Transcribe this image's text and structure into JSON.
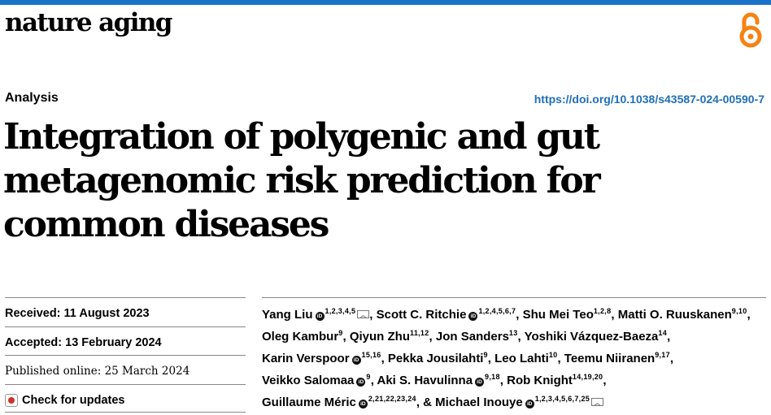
{
  "journal": {
    "name": "nature aging"
  },
  "article": {
    "type": "Analysis",
    "doi": "https://doi.org/10.1038/s43587-024-00590-7",
    "title": "Integration of polygenic and gut metagenomic risk prediction for common diseases"
  },
  "dates": {
    "received": "Received: 11 August 2023",
    "accepted": "Accepted: 13 February 2024",
    "published": "Published online: 25 March 2024",
    "check_updates": "Check for updates"
  },
  "authors": [
    {
      "name": "Yang Liu",
      "sup": "1,2,3,4,5",
      "orcid": true,
      "mail": true
    },
    {
      "name": "Scott C. Ritchie",
      "sup": "1,2,4,5,6,7",
      "orcid": true,
      "mail": false
    },
    {
      "name": "Shu Mei Teo",
      "sup": "1,2,8",
      "orcid": false,
      "mail": false
    },
    {
      "name": "Matti O. Ruuskanen",
      "sup": "9,10",
      "orcid": false,
      "mail": false
    },
    {
      "name": "Oleg Kambur",
      "sup": "9",
      "orcid": false,
      "mail": false
    },
    {
      "name": "Qiyun Zhu",
      "sup": "11,12",
      "orcid": false,
      "mail": false
    },
    {
      "name": "Jon Sanders",
      "sup": "13",
      "orcid": false,
      "mail": false
    },
    {
      "name": "Yoshiki Vázquez-Baeza",
      "sup": "14",
      "orcid": false,
      "mail": false
    },
    {
      "name": "Karin Verspoor",
      "sup": "15,16",
      "orcid": true,
      "mail": false
    },
    {
      "name": "Pekka Jousilahti",
      "sup": "9",
      "orcid": false,
      "mail": false
    },
    {
      "name": "Leo Lahti",
      "sup": "10",
      "orcid": false,
      "mail": false
    },
    {
      "name": "Teemu Niiranen",
      "sup": "9,17",
      "orcid": false,
      "mail": false
    },
    {
      "name": "Veikko Salomaa",
      "sup": "9",
      "orcid": true,
      "mail": false
    },
    {
      "name": "Aki S. Havulinna",
      "sup": "9,18",
      "orcid": true,
      "mail": false
    },
    {
      "name": "Rob Knight",
      "sup": "14,19,20",
      "orcid": false,
      "mail": false
    },
    {
      "name": "Guillaume Méric",
      "sup": "2,21,22,23,24",
      "orcid": true,
      "mail": false
    },
    {
      "name": "Michael Inouye",
      "sup": "1,2,3,4,5,6,7,25",
      "orcid": true,
      "mail": true
    }
  ],
  "orcid_glyph": "iD",
  "icons": {
    "open_access": "open-access-lock-icon",
    "orcid": "orcid-icon",
    "mail": "mail-icon",
    "crossmark": "crossmark-icon"
  },
  "colors": {
    "accent": "#1a73c8",
    "link": "#1f6fb8",
    "open_access": "#f68212"
  }
}
